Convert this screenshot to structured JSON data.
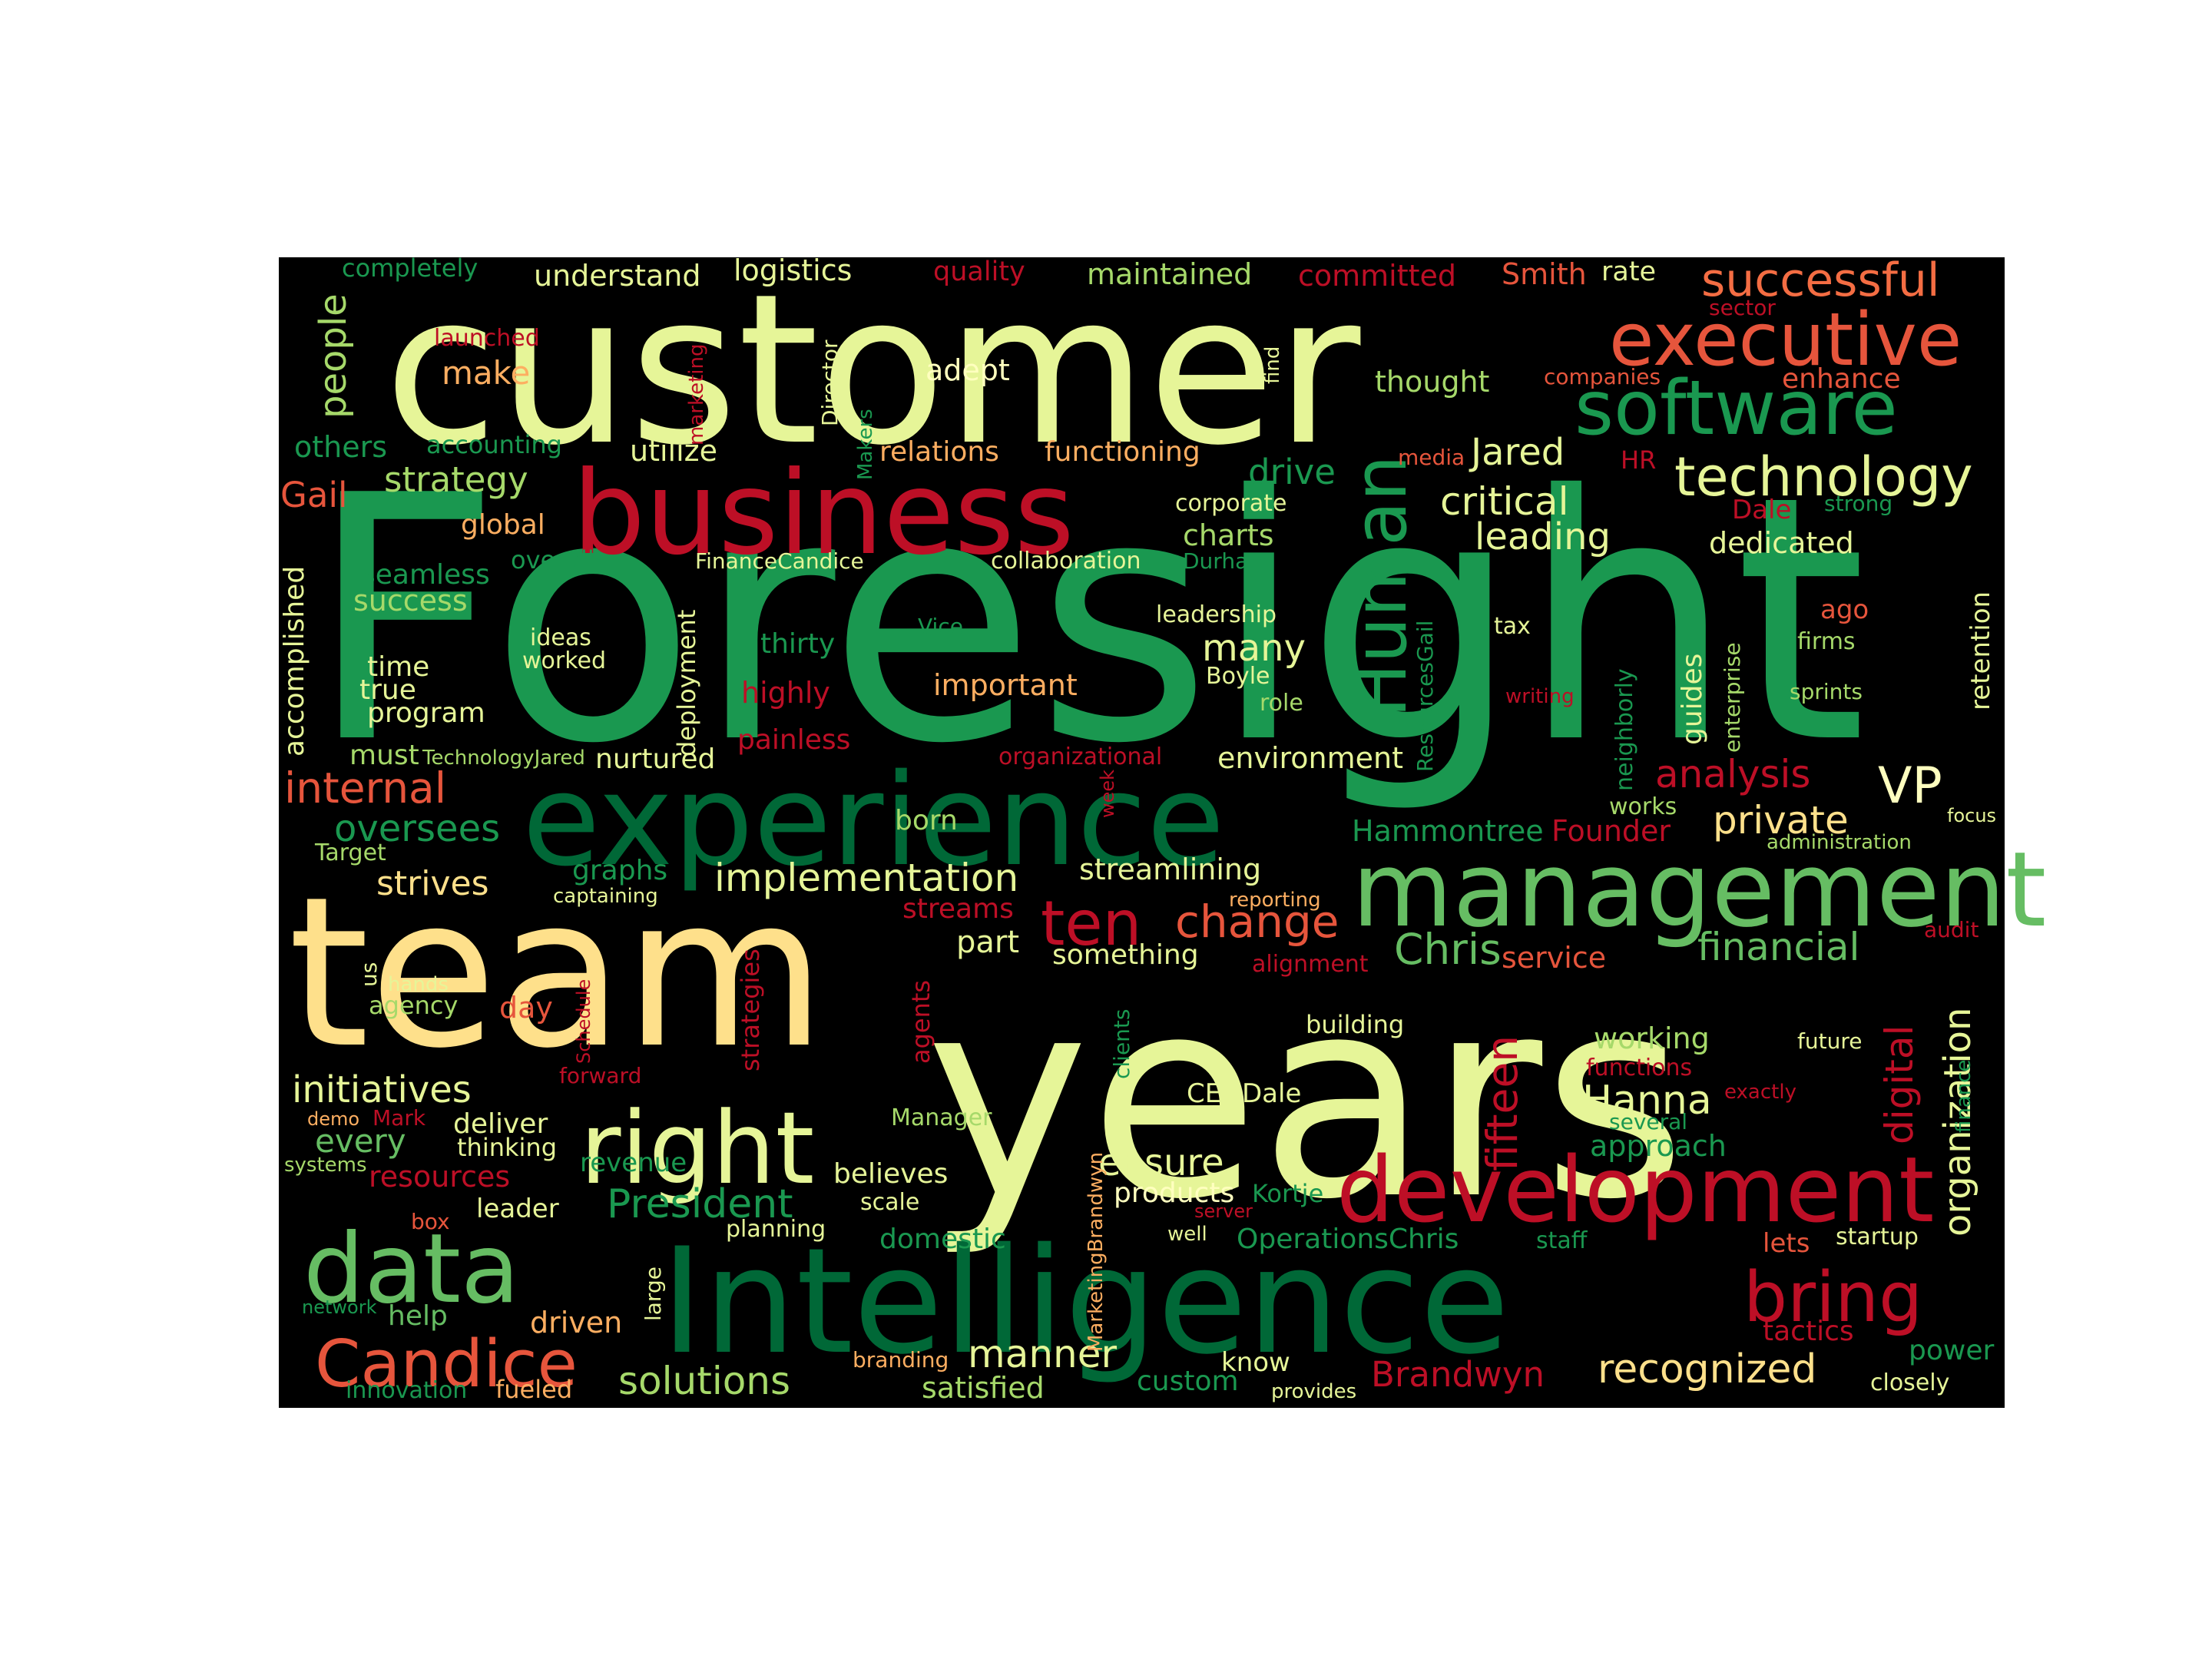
{
  "colors": {
    "page_background": "#ffffff",
    "cloud_background": "#000000",
    "palette_name": "red-yellow-green"
  },
  "words": [
    {
      "text": "Foresight",
      "color": "#1a9850"
    },
    {
      "text": "customer",
      "color": "#e6f598"
    },
    {
      "text": "years",
      "color": "#e6f598"
    },
    {
      "text": "team",
      "color": "#fee08b"
    },
    {
      "text": "Intelligence",
      "color": "#006837"
    },
    {
      "text": "experience",
      "color": "#006837"
    },
    {
      "text": "business",
      "color": "#bd0f26"
    },
    {
      "text": "management",
      "color": "#66bd63"
    },
    {
      "text": "development",
      "color": "#bd0f26"
    },
    {
      "text": "software",
      "color": "#1a9850"
    },
    {
      "text": "executive",
      "color": "#e6553c"
    },
    {
      "text": "right",
      "color": "#e6f598"
    },
    {
      "text": "data",
      "color": "#66bd63"
    },
    {
      "text": "technology",
      "color": "#e6f598"
    },
    {
      "text": "Human",
      "color": "#1a9850"
    },
    {
      "text": "bring",
      "color": "#bd0f26"
    },
    {
      "text": "Candice",
      "color": "#e6553c"
    },
    {
      "text": "successful",
      "color": "#f46d43"
    },
    {
      "text": "ten",
      "color": "#bd0f26"
    },
    {
      "text": "VP",
      "color": "#ffffbf"
    },
    {
      "text": "people",
      "color": "#a6d96a"
    },
    {
      "text": "critical",
      "color": "#e6f598"
    },
    {
      "text": "leading",
      "color": "#e6f598"
    },
    {
      "text": "Jared",
      "color": "#e6f598"
    },
    {
      "text": "internal",
      "color": "#e6553c"
    },
    {
      "text": "analysis",
      "color": "#bd0f26"
    },
    {
      "text": "private",
      "color": "#fee08b"
    },
    {
      "text": "implementation",
      "color": "#e6f598"
    },
    {
      "text": "oversees",
      "color": "#1a9850"
    },
    {
      "text": "Chris",
      "color": "#66bd63"
    },
    {
      "text": "change",
      "color": "#e6553c"
    },
    {
      "text": "financial",
      "color": "#66bd63"
    },
    {
      "text": "Hanna",
      "color": "#e6f598"
    },
    {
      "text": "digital",
      "color": "#bd0f26"
    },
    {
      "text": "organization",
      "color": "#e6f598"
    },
    {
      "text": "fifteen",
      "color": "#bd0f26"
    },
    {
      "text": "initiatives",
      "color": "#e6f598"
    },
    {
      "text": "recognized",
      "color": "#fee08b"
    },
    {
      "text": "solutions",
      "color": "#a6d96a"
    },
    {
      "text": "manner",
      "color": "#e6f598"
    },
    {
      "text": "President",
      "color": "#1a9850"
    },
    {
      "text": "ensure",
      "color": "#e6f598"
    },
    {
      "text": "Brandwyn",
      "color": "#bd0f26"
    },
    {
      "text": "strategy",
      "color": "#a6d96a"
    },
    {
      "text": "Gail",
      "color": "#e6553c"
    },
    {
      "text": "many",
      "color": "#e6f598"
    },
    {
      "text": "drive",
      "color": "#1a9850"
    },
    {
      "text": "understand",
      "color": "#e6f598"
    },
    {
      "text": "logistics",
      "color": "#e6f598"
    },
    {
      "text": "quality",
      "color": "#bd0f26"
    },
    {
      "text": "maintained",
      "color": "#a6d96a"
    },
    {
      "text": "committed",
      "color": "#bd0f26"
    },
    {
      "text": "Smith",
      "color": "#e6553c"
    },
    {
      "text": "rate",
      "color": "#e6f598"
    },
    {
      "text": "completely",
      "color": "#1a9850"
    },
    {
      "text": "make",
      "color": "#fdae61"
    },
    {
      "text": "adept",
      "color": "#ffffbf"
    },
    {
      "text": "thought",
      "color": "#a6d96a"
    },
    {
      "text": "enhance",
      "color": "#e6553c"
    },
    {
      "text": "companies",
      "color": "#e6553c"
    },
    {
      "text": "sector",
      "color": "#bd0f26"
    },
    {
      "text": "launched",
      "color": "#bd0f26"
    },
    {
      "text": "Director",
      "color": "#e6f598"
    },
    {
      "text": "marketing",
      "color": "#bd0f26"
    },
    {
      "text": "find",
      "color": "#e6f598"
    },
    {
      "text": "others",
      "color": "#1a9850"
    },
    {
      "text": "accounting",
      "color": "#1a9850"
    },
    {
      "text": "utilize",
      "color": "#e6f598"
    },
    {
      "text": "relations",
      "color": "#fdae61"
    },
    {
      "text": "functioning",
      "color": "#fdae61"
    },
    {
      "text": "media",
      "color": "#e6553c"
    },
    {
      "text": "HR",
      "color": "#bd0f26"
    },
    {
      "text": "Makers",
      "color": "#1a9850"
    },
    {
      "text": "global",
      "color": "#fdae61"
    },
    {
      "text": "corporate",
      "color": "#e6f598"
    },
    {
      "text": "Dale",
      "color": "#bd0f26"
    },
    {
      "text": "strong",
      "color": "#1a9850"
    },
    {
      "text": "overall",
      "color": "#1a9850"
    },
    {
      "text": "FinanceCandice",
      "color": "#e6f598"
    },
    {
      "text": "collaboration",
      "color": "#e6f598"
    },
    {
      "text": "charts",
      "color": "#a6d96a"
    },
    {
      "text": "Durham",
      "color": "#1a9850"
    },
    {
      "text": "dedicated",
      "color": "#e6f598"
    },
    {
      "text": "seamless",
      "color": "#1a9850"
    },
    {
      "text": "success",
      "color": "#a6d96a"
    },
    {
      "text": "accomplished",
      "color": "#e6f598"
    },
    {
      "text": "ideas",
      "color": "#e6f598"
    },
    {
      "text": "worked",
      "color": "#e6f598"
    },
    {
      "text": "thirty",
      "color": "#1a9850"
    },
    {
      "text": "Vice",
      "color": "#1a9850"
    },
    {
      "text": "leadership",
      "color": "#e6f598"
    },
    {
      "text": "tax",
      "color": "#e6f598"
    },
    {
      "text": "ago",
      "color": "#e6553c"
    },
    {
      "text": "firms",
      "color": "#a6d96a"
    },
    {
      "text": "retention",
      "color": "#e6f598"
    },
    {
      "text": "time",
      "color": "#e6f598"
    },
    {
      "text": "true",
      "color": "#e6f598"
    },
    {
      "text": "program",
      "color": "#e6f598"
    },
    {
      "text": "highly",
      "color": "#bd0f26"
    },
    {
      "text": "important",
      "color": "#fdae61"
    },
    {
      "text": "Boyle",
      "color": "#e6f598"
    },
    {
      "text": "role",
      "color": "#a6d96a"
    },
    {
      "text": "writing",
      "color": "#bd0f26"
    },
    {
      "text": "sprints",
      "color": "#a6d96a"
    },
    {
      "text": "guides",
      "color": "#e6f598"
    },
    {
      "text": "enterprise",
      "color": "#a6d96a"
    },
    {
      "text": "ResourcesGail",
      "color": "#1a9850"
    },
    {
      "text": "neighborly",
      "color": "#1a9850"
    },
    {
      "text": "deployment",
      "color": "#e6f598"
    },
    {
      "text": "must",
      "color": "#a6d96a"
    },
    {
      "text": "TechnologyJared",
      "color": "#a6d96a"
    },
    {
      "text": "nurtured",
      "color": "#e6f598"
    },
    {
      "text": "painless",
      "color": "#bd0f26"
    },
    {
      "text": "organizational",
      "color": "#bd0f26"
    },
    {
      "text": "environment",
      "color": "#e6f598"
    },
    {
      "text": "week",
      "color": "#bd0f26"
    },
    {
      "text": "works",
      "color": "#a6d96a"
    },
    {
      "text": "focus",
      "color": "#e6f598"
    },
    {
      "text": "born",
      "color": "#a6d96a"
    },
    {
      "text": "Hammontree",
      "color": "#1a9850"
    },
    {
      "text": "Founder",
      "color": "#bd0f26"
    },
    {
      "text": "administration",
      "color": "#a6d96a"
    },
    {
      "text": "Target",
      "color": "#a6d96a"
    },
    {
      "text": "graphs",
      "color": "#1a9850"
    },
    {
      "text": "strives",
      "color": "#fee08b"
    },
    {
      "text": "captaining",
      "color": "#e6f598"
    },
    {
      "text": "streamlining",
      "color": "#e6f598"
    },
    {
      "text": "streams",
      "color": "#bd0f26"
    },
    {
      "text": "reporting",
      "color": "#fdae61"
    },
    {
      "text": "audit",
      "color": "#bd0f26"
    },
    {
      "text": "part",
      "color": "#e6f598"
    },
    {
      "text": "something",
      "color": "#e6f598"
    },
    {
      "text": "alignment",
      "color": "#bd0f26"
    },
    {
      "text": "service",
      "color": "#e6553c"
    },
    {
      "text": "us",
      "color": "#e6f598"
    },
    {
      "text": "hands",
      "color": "#e6f598"
    },
    {
      "text": "agency",
      "color": "#a6d96a"
    },
    {
      "text": "day",
      "color": "#e6553c"
    },
    {
      "text": "Schedule",
      "color": "#bd0f26"
    },
    {
      "text": "strategies",
      "color": "#bd0f26"
    },
    {
      "text": "agents",
      "color": "#bd0f26"
    },
    {
      "text": "building",
      "color": "#e6f598"
    },
    {
      "text": "working",
      "color": "#a6d96a"
    },
    {
      "text": "future",
      "color": "#e6f598"
    },
    {
      "text": "functions",
      "color": "#bd0f26"
    },
    {
      "text": "clients",
      "color": "#1a9850"
    },
    {
      "text": "CEODale",
      "color": "#e6f598"
    },
    {
      "text": "exactly",
      "color": "#bd0f26"
    },
    {
      "text": "forward",
      "color": "#bd0f26"
    },
    {
      "text": "demo",
      "color": "#fdae61"
    },
    {
      "text": "Mark",
      "color": "#bd0f26"
    },
    {
      "text": "deliver",
      "color": "#e6f598"
    },
    {
      "text": "Manager",
      "color": "#a6d96a"
    },
    {
      "text": "MarketingBrandwyn",
      "color": "#fdae61"
    },
    {
      "text": "several",
      "color": "#1a9850"
    },
    {
      "text": "finance",
      "color": "#1a9850"
    },
    {
      "text": "every",
      "color": "#66bd63"
    },
    {
      "text": "thinking",
      "color": "#e6f598"
    },
    {
      "text": "approach",
      "color": "#1a9850"
    },
    {
      "text": "systems",
      "color": "#a6d96a"
    },
    {
      "text": "resources",
      "color": "#bd0f26"
    },
    {
      "text": "revenue",
      "color": "#1a9850"
    },
    {
      "text": "believes",
      "color": "#e6f598"
    },
    {
      "text": "products",
      "color": "#ffffbf"
    },
    {
      "text": "Kortje",
      "color": "#1a9850"
    },
    {
      "text": "leader",
      "color": "#e6f598"
    },
    {
      "text": "scale",
      "color": "#e6f598"
    },
    {
      "text": "server",
      "color": "#bd0f26"
    },
    {
      "text": "box",
      "color": "#e6553c"
    },
    {
      "text": "planning",
      "color": "#e6f598"
    },
    {
      "text": "domestic",
      "color": "#1a9850"
    },
    {
      "text": "well",
      "color": "#e6f598"
    },
    {
      "text": "OperationsChris",
      "color": "#1a9850"
    },
    {
      "text": "staff",
      "color": "#1a9850"
    },
    {
      "text": "lets",
      "color": "#e6553c"
    },
    {
      "text": "startup",
      "color": "#e6f598"
    },
    {
      "text": "large",
      "color": "#e6f598"
    },
    {
      "text": "network",
      "color": "#1a9850"
    },
    {
      "text": "help",
      "color": "#66bd63"
    },
    {
      "text": "driven",
      "color": "#fdae61"
    },
    {
      "text": "tactics",
      "color": "#bd0f26"
    },
    {
      "text": "power",
      "color": "#1a9850"
    },
    {
      "text": "branding",
      "color": "#fdae61"
    },
    {
      "text": "know",
      "color": "#e6f598"
    },
    {
      "text": "custom",
      "color": "#1a9850"
    },
    {
      "text": "innovation",
      "color": "#1a9850"
    },
    {
      "text": "fueled",
      "color": "#fdae61"
    },
    {
      "text": "satisfied",
      "color": "#a6d96a"
    },
    {
      "text": "provides",
      "color": "#e6f598"
    },
    {
      "text": "closely",
      "color": "#e6f598"
    }
  ]
}
